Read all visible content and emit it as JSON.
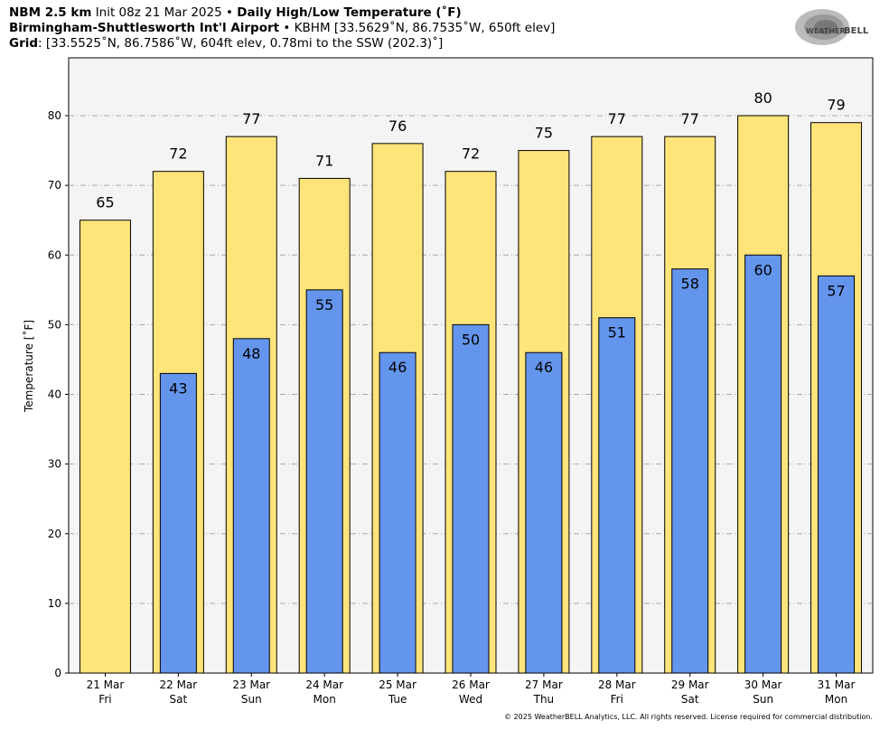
{
  "header": {
    "model": "NBM 2.5 km",
    "init": "Init 08z 21 Mar 2025",
    "bullet": "•",
    "product": "Daily High/Low Temperature (˚F)",
    "station_name": "Birmingham-Shuttlesworth Int'l Airport",
    "station_info": "KBHM [33.5629˚N, 86.7535˚W, 650ft elev]",
    "grid_label": "Grid",
    "grid_info": ": [33.5525˚N, 86.7586˚W, 604ft elev, 0.78mi to the SSW (202.3)˚]"
  },
  "logo_text": "WeatherBELL Analytics LLC",
  "copyright": "© 2025 WeatherBELL Analytics, LLC. All rights reserved. License required for commercial distribution.",
  "chart_data": {
    "type": "bar",
    "ylabel": "Temperature [˚F]",
    "ylim": [
      0,
      88.3
    ],
    "yticks": [
      0,
      10,
      20,
      30,
      40,
      50,
      60,
      70,
      80
    ],
    "grid": true,
    "categories": [
      {
        "date": "21 Mar",
        "day": "Fri"
      },
      {
        "date": "22 Mar",
        "day": "Sat"
      },
      {
        "date": "23 Mar",
        "day": "Sun"
      },
      {
        "date": "24 Mar",
        "day": "Mon"
      },
      {
        "date": "25 Mar",
        "day": "Tue"
      },
      {
        "date": "26 Mar",
        "day": "Wed"
      },
      {
        "date": "27 Mar",
        "day": "Thu"
      },
      {
        "date": "28 Mar",
        "day": "Fri"
      },
      {
        "date": "29 Mar",
        "day": "Sat"
      },
      {
        "date": "30 Mar",
        "day": "Sun"
      },
      {
        "date": "31 Mar",
        "day": "Mon"
      }
    ],
    "series": [
      {
        "key": "high",
        "color": "#FFE47A",
        "values": [
          65,
          72,
          77,
          71,
          76,
          72,
          75,
          77,
          77,
          80,
          79
        ]
      },
      {
        "key": "low",
        "color": "#6495ED",
        "values": [
          null,
          43,
          48,
          55,
          46,
          50,
          46,
          51,
          58,
          60,
          57
        ]
      }
    ],
    "background": "#F4F4F4"
  }
}
